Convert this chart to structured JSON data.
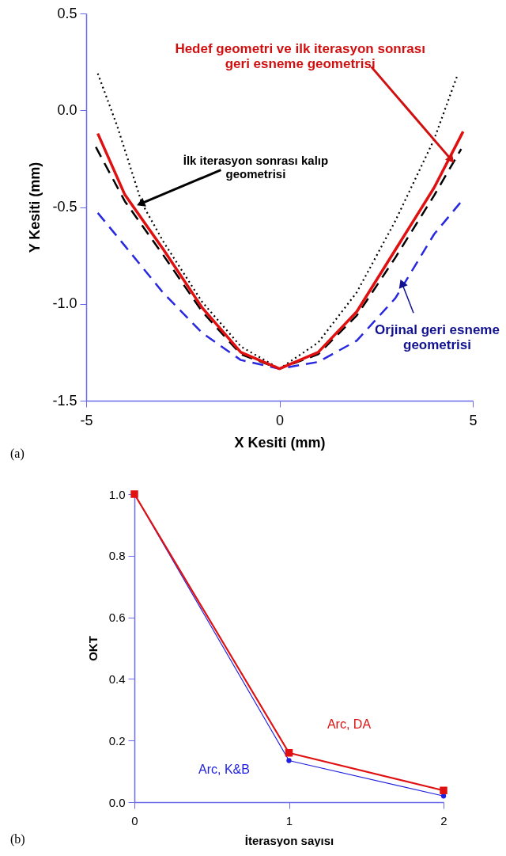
{
  "chart_data": [
    {
      "type": "line",
      "xlabel": "X Kesiti (mm)",
      "ylabel": "Y Kesiti (mm)",
      "xlim": [
        -5,
        5
      ],
      "ylim": [
        -1.5,
        0.5
      ],
      "xticks": [
        -5,
        0,
        5
      ],
      "yticks": [
        {
          "value": -1.5,
          "label": "-1.5"
        },
        {
          "value": -1.0,
          "label": "-1.0"
        },
        {
          "value": -0.5,
          "label": "-0.5"
        },
        {
          "value": 0,
          "label": "0.0"
        },
        {
          "value": 0.5,
          "label": "0.5"
        }
      ],
      "grid": false,
      "series": [
        {
          "color": "#000000",
          "line_style": "dotted",
          "x": [
            -4.7,
            -4.2,
            -3.56,
            -3,
            -2,
            -1,
            0,
            1,
            2,
            3,
            4,
            4.6
          ],
          "values": [
            0.19,
            -0.08,
            -0.48,
            -0.68,
            -0.99,
            -1.22,
            -1.335,
            -1.2,
            -0.94,
            -0.57,
            -0.15,
            0.18
          ]
        },
        {
          "color": "#000000",
          "line_style": "dashed",
          "x": [
            -4.75,
            -4,
            -3,
            -2,
            -1,
            0,
            1,
            2,
            3,
            4,
            4.7
          ],
          "values": [
            -0.19,
            -0.47,
            -0.75,
            -1.04,
            -1.26,
            -1.335,
            -1.26,
            -1.06,
            -0.76,
            -0.44,
            -0.2
          ]
        },
        {
          "color": "#2828e0",
          "line_style": "dashed",
          "x": [
            -4.7,
            -4,
            -3,
            -2,
            -1,
            0,
            1,
            2,
            3,
            4,
            4.75
          ],
          "values": [
            -0.53,
            -0.7,
            -0.945,
            -1.15,
            -1.29,
            -1.335,
            -1.3,
            -1.19,
            -0.97,
            -0.64,
            -0.46
          ]
        },
        {
          "color": "#e01010",
          "line_style": "solid",
          "x": [
            -4.7,
            -4,
            -3,
            -2,
            -1,
            0,
            1,
            2,
            3,
            4,
            4.75
          ],
          "values": [
            -0.12,
            -0.436,
            -0.72,
            -1.02,
            -1.25,
            -1.335,
            -1.25,
            -1.04,
            -0.72,
            -0.4,
            -0.11
          ]
        }
      ],
      "annotations": [
        {
          "text": "Hedef geometri ve ilk iterasyon sonrası\ngeri esneme geometrisi",
          "x": 4.42,
          "y": -0.25
        },
        {
          "text": "İlk iterasyon sonrası kalıp\ngeometrisi",
          "x": -3.56,
          "y": -0.48
        },
        {
          "text": "Orjinal geri esneme\ngeometrisi",
          "x": 3.18,
          "y": -0.9
        },
        "(a)"
      ]
    },
    {
      "type": "line",
      "xlabel": "İterasyon sayısı",
      "ylabel": "OKT",
      "xlim": [
        0,
        2
      ],
      "ylim": [
        0,
        1.0
      ],
      "xticks": [
        0,
        1,
        2
      ],
      "yticks": [
        {
          "value": 0,
          "label": "0.0"
        },
        {
          "value": 0.2,
          "label": "0.2"
        },
        {
          "value": 0.4,
          "label": "0.4"
        },
        {
          "value": 0.6,
          "label": "0.6"
        },
        {
          "value": 0.8,
          "label": "0.8"
        },
        {
          "value": 1.0,
          "label": "1.0"
        }
      ],
      "grid": false,
      "series": [
        {
          "name": "Arc, K&B",
          "color": "#2020e0",
          "marker": "circle",
          "x": [
            0,
            1,
            2
          ],
          "values": [
            1.0,
            0.135,
            0.02
          ]
        },
        {
          "name": "Arc, DA",
          "color": "#e01010",
          "marker": "square",
          "x": [
            0,
            1,
            2
          ],
          "values": [
            1.0,
            0.16,
            0.038
          ]
        }
      ],
      "annotations": [
        "(b)"
      ]
    }
  ]
}
